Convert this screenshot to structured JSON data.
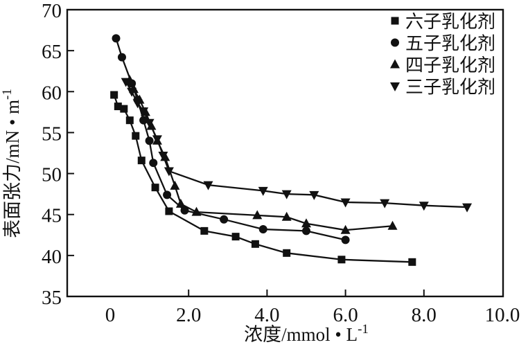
{
  "figure": {
    "background": "#ffffff",
    "ink_color": "#111111"
  },
  "chart_data": {
    "type": "line",
    "title": "",
    "xlabel": "浓度/mmol·L⁻¹",
    "xlabel_main": "浓度/mmol • L",
    "xlabel_sup": "-1",
    "ylabel": "表面张力/mN·m⁻¹",
    "ylabel_main": "表面张力/mN • m",
    "ylabel_sup": "-1",
    "xlim": [
      0,
      10
    ],
    "ylim": [
      35,
      70
    ],
    "grid": false,
    "legend_position": "top-right-inside",
    "x_ticks": [
      {
        "value": 0,
        "label": "0"
      },
      {
        "value": 2,
        "label": "2.0"
      },
      {
        "value": 4,
        "label": "4.0"
      },
      {
        "value": 6,
        "label": "6.0"
      },
      {
        "value": 8,
        "label": "8.0"
      },
      {
        "value": 10,
        "label": "10.0"
      }
    ],
    "y_ticks": [
      {
        "value": 35,
        "label": "35"
      },
      {
        "value": 40,
        "label": "40"
      },
      {
        "value": 45,
        "label": "45"
      },
      {
        "value": 50,
        "label": "50"
      },
      {
        "value": 55,
        "label": "55"
      },
      {
        "value": 60,
        "label": "60"
      },
      {
        "value": 65,
        "label": "65"
      },
      {
        "value": 70,
        "label": "70"
      }
    ],
    "series": [
      {
        "name": "六子乳化剂",
        "marker": "square",
        "color": "#111111",
        "points": [
          [
            0.1,
            59.6
          ],
          [
            0.2,
            58.2
          ],
          [
            0.35,
            57.9
          ],
          [
            0.5,
            56.5
          ],
          [
            0.65,
            54.6
          ],
          [
            0.8,
            51.6
          ],
          [
            1.15,
            48.3
          ],
          [
            1.5,
            45.4
          ],
          [
            2.4,
            43.0
          ],
          [
            3.2,
            42.3
          ],
          [
            3.7,
            41.4
          ],
          [
            4.5,
            40.3
          ],
          [
            5.9,
            39.5
          ],
          [
            7.7,
            39.2
          ]
        ]
      },
      {
        "name": "五子乳化剂",
        "marker": "circle",
        "color": "#111111",
        "points": [
          [
            0.15,
            66.5
          ],
          [
            0.3,
            64.2
          ],
          [
            0.55,
            61.0
          ],
          [
            0.7,
            59.0
          ],
          [
            0.85,
            56.5
          ],
          [
            1.0,
            54.0
          ],
          [
            1.1,
            51.3
          ],
          [
            1.45,
            47.4
          ],
          [
            1.9,
            45.5
          ],
          [
            2.9,
            44.4
          ],
          [
            3.9,
            43.2
          ],
          [
            5.0,
            43.0
          ],
          [
            6.0,
            41.9
          ]
        ]
      },
      {
        "name": "四子乳化剂",
        "marker": "triangle-up",
        "color": "#111111",
        "points": [
          [
            0.5,
            61.4
          ],
          [
            0.6,
            60.3
          ],
          [
            0.75,
            59.0
          ],
          [
            0.9,
            57.5
          ],
          [
            1.05,
            55.8
          ],
          [
            1.2,
            54.0
          ],
          [
            1.4,
            52.0
          ],
          [
            1.65,
            48.5
          ],
          [
            1.8,
            46.3
          ],
          [
            2.2,
            45.3
          ],
          [
            3.75,
            44.9
          ],
          [
            4.5,
            44.7
          ],
          [
            5.0,
            43.9
          ],
          [
            6.0,
            43.1
          ],
          [
            7.2,
            43.6
          ]
        ]
      },
      {
        "name": "三子乳化剂",
        "marker": "triangle-down",
        "color": "#111111",
        "points": [
          [
            0.4,
            61.2
          ],
          [
            0.55,
            60.0
          ],
          [
            0.7,
            58.6
          ],
          [
            0.85,
            57.6
          ],
          [
            1.0,
            56.2
          ],
          [
            1.2,
            54.2
          ],
          [
            1.35,
            52.2
          ],
          [
            1.5,
            50.3
          ],
          [
            2.5,
            48.6
          ],
          [
            3.9,
            47.9
          ],
          [
            4.5,
            47.5
          ],
          [
            5.2,
            47.4
          ],
          [
            6.0,
            46.5
          ],
          [
            7.0,
            46.4
          ],
          [
            8.0,
            46.1
          ],
          [
            9.1,
            45.9
          ]
        ]
      }
    ]
  }
}
